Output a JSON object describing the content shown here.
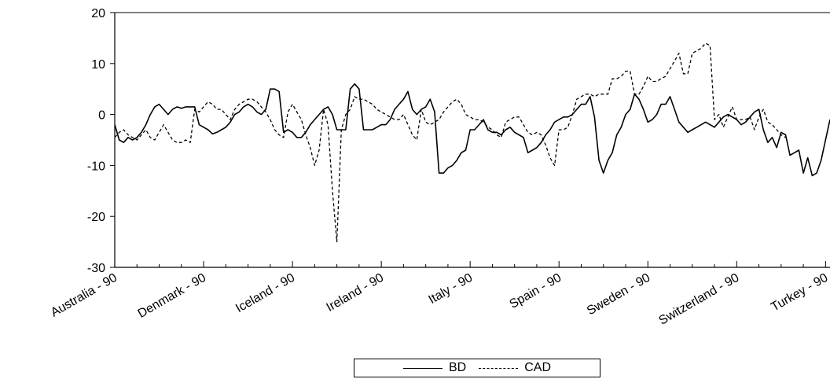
{
  "chart_data": {
    "type": "line",
    "ylim": [
      -30,
      20
    ],
    "yticks": [
      "20",
      "10",
      "0",
      "-10",
      "-20",
      "-30"
    ],
    "ytick_values": [
      20,
      10,
      0,
      -10,
      -20,
      -30
    ],
    "xticks": [
      "Australia - 90",
      "Denmark - 90",
      "Iceland - 90",
      "Ireland - 90",
      "Italy - 90",
      "Spain - 90",
      "Sweden - 90",
      "Switzerland - 90",
      "Turkey - 90"
    ],
    "grid": false,
    "legend_position": "bottom-center",
    "series": [
      {
        "name": "BD",
        "style": "solid",
        "values": [
          -2,
          -5,
          -5.5,
          -4.5,
          -5,
          -4.5,
          -3.5,
          -2,
          0,
          1.5,
          2,
          1,
          0,
          1,
          1.5,
          1.2,
          1.5,
          1.5,
          1.5,
          -2,
          -2.5,
          -3,
          -3.8,
          -3.5,
          -3,
          -2.5,
          -1.5,
          0,
          0.5,
          1.5,
          2,
          1.5,
          0.5,
          0,
          1,
          5,
          5,
          4.5,
          -3.5,
          -3,
          -3.5,
          -4.5,
          -4.5,
          -3.5,
          -2,
          -1,
          0,
          1,
          1.5,
          0,
          -3,
          -3,
          -3,
          5,
          6,
          5,
          -3,
          -3,
          -3,
          -2.5,
          -2,
          -2,
          -1,
          1,
          2,
          3,
          4.5,
          1,
          0,
          1,
          1.5,
          3,
          0.5,
          -11.5,
          -11.5,
          -10.5,
          -10,
          -9,
          -7.5,
          -7,
          -3,
          -3,
          -2,
          -1,
          -3,
          -3.5,
          -3.5,
          -4,
          -3,
          -2.5,
          -3.5,
          -4,
          -4.5,
          -7.5,
          -7,
          -6.5,
          -5.5,
          -4,
          -3,
          -1.5,
          -1,
          -0.5,
          -0.5,
          0,
          1,
          2,
          2,
          3.5,
          -0.5,
          -9,
          -11.5,
          -9,
          -7.5,
          -4,
          -2.5,
          0,
          1,
          4,
          3,
          1,
          -1.5,
          -1,
          0,
          2,
          2,
          3.5,
          1,
          -1.5,
          -2.5,
          -3.5,
          -3,
          -2.5,
          -2,
          -1.5,
          -2,
          -2.5,
          -1.5,
          -0.5,
          0,
          -0.5,
          -1,
          -2,
          -1.5,
          -0.5,
          0.5,
          1,
          -3,
          -5.5,
          -4.5,
          -6.5,
          -3.5,
          -4,
          -8,
          -7.5,
          -7,
          -11.5,
          -8.5,
          -12,
          -11.5,
          -9,
          -5,
          -1
        ],
        "color": "#000000"
      },
      {
        "name": "CAD",
        "style": "dashed",
        "values": [
          -4.5,
          -3.5,
          -3,
          -4,
          -4.5,
          -5,
          -4,
          -3,
          -4.5,
          -5,
          -3.5,
          -2,
          -3.5,
          -5,
          -5.5,
          -5.5,
          -5,
          -5.5,
          1,
          0.5,
          1.5,
          2.5,
          2,
          1,
          1,
          0,
          -1,
          1,
          2,
          2.5,
          3,
          3,
          2.5,
          1.5,
          0.5,
          -1,
          -3,
          -4,
          -4.5,
          0.5,
          2,
          0.5,
          -1,
          -4,
          -6.5,
          -10,
          -7,
          1,
          -2,
          -15,
          -25,
          -3,
          0,
          1,
          3.5,
          3,
          3,
          2.5,
          2,
          1,
          0.5,
          0,
          -0.5,
          -1,
          -1,
          0,
          -2,
          -4,
          -5,
          1,
          -1.5,
          -2,
          -1.5,
          -1,
          0.5,
          1.5,
          2.5,
          3,
          2,
          0,
          -0.5,
          -1,
          -1,
          -1.5,
          -2.5,
          -3,
          -4,
          -4.5,
          -1.5,
          -1,
          -0.5,
          -0.5,
          -2,
          -3.5,
          -4,
          -3.5,
          -4,
          -6,
          -8.5,
          -10,
          -3,
          -3,
          -2.5,
          0,
          3,
          3.5,
          4,
          4,
          3.5,
          4,
          4,
          4,
          7,
          7,
          7.5,
          8.5,
          8.5,
          4,
          4,
          5.5,
          7.5,
          6.5,
          6.5,
          7,
          7.5,
          9,
          10.5,
          12,
          8,
          8,
          12,
          12.5,
          13,
          14,
          13.5,
          -1,
          0,
          -2.5,
          -0.5,
          1.5,
          -1,
          -1,
          -1,
          -0.5,
          -3,
          -0.5,
          1,
          -1.5,
          -2,
          -3,
          -4,
          -4.5
        ],
        "color": "#000000"
      }
    ]
  }
}
